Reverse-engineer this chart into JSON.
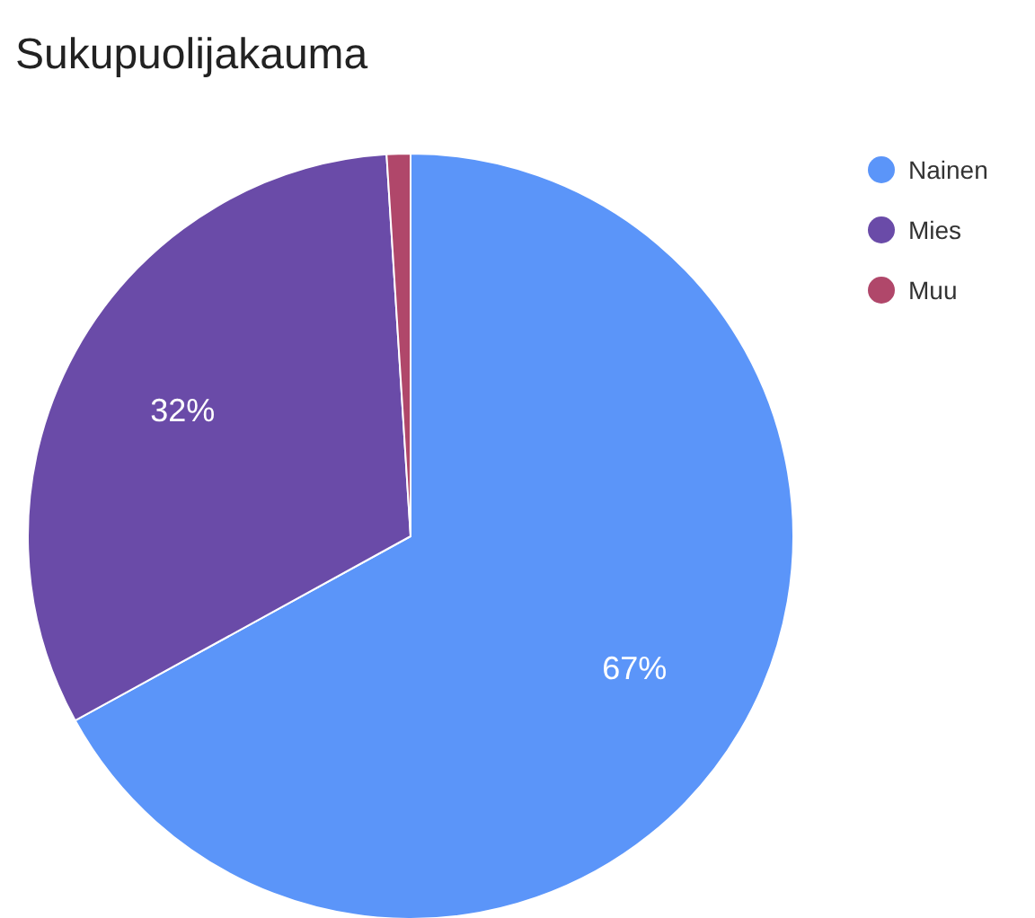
{
  "chart_data": {
    "type": "pie",
    "title": "Sukupuolijakauma",
    "categories": [
      "Nainen",
      "Mies",
      "Muu"
    ],
    "values": [
      67,
      32,
      1
    ],
    "colors": [
      "#5b95f9",
      "#6a4ba8",
      "#b0476a"
    ],
    "value_labels": [
      "67%",
      "32%",
      null
    ],
    "legend": "top right"
  }
}
